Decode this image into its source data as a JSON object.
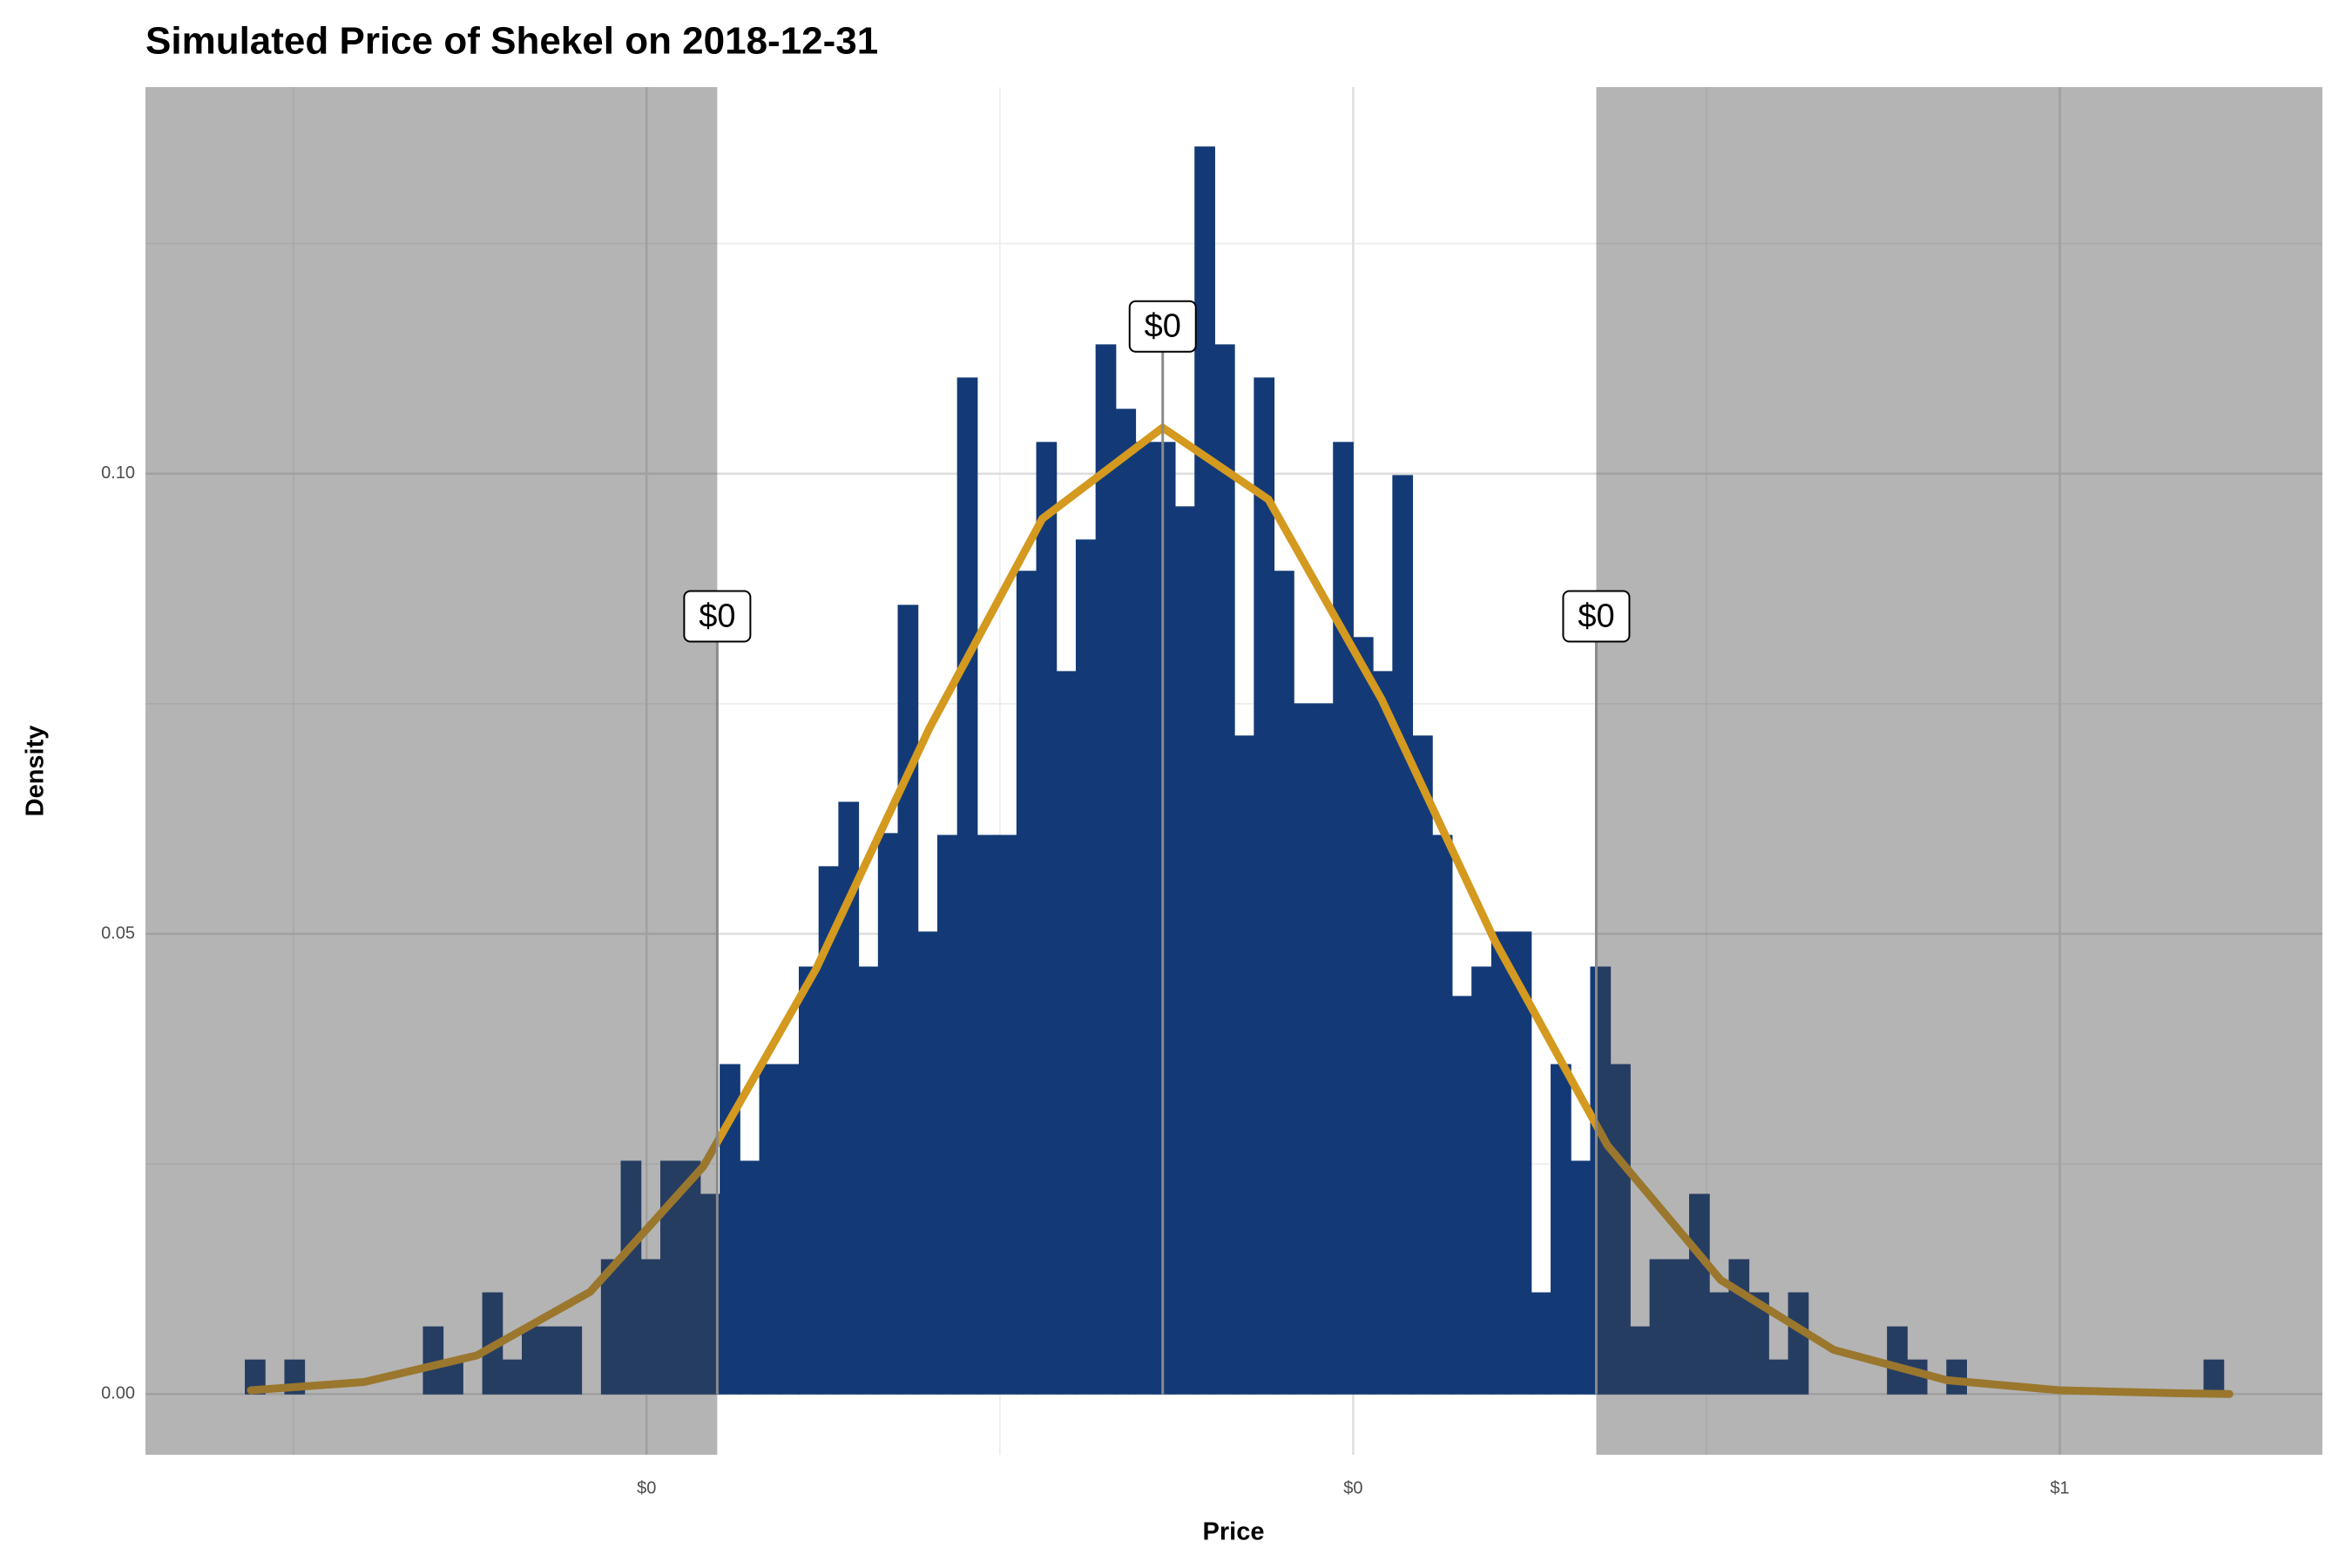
{
  "chart_data": {
    "type": "histogram",
    "title": "Simulated Price of Shekel on 2018-12-31",
    "x_label": "Price",
    "y_label": "Density",
    "bins": [
      0.108,
      0.115,
      0.122,
      0.129,
      0.136,
      0.143,
      0.15,
      0.157,
      0.164,
      0.171,
      0.178,
      0.185,
      0.192,
      0.199,
      0.206,
      0.213,
      0.22,
      0.227,
      0.234,
      0.241,
      0.248,
      0.255,
      0.262,
      0.269,
      0.276,
      0.283,
      0.29,
      0.297,
      0.304,
      0.311,
      0.318,
      0.325,
      0.332,
      0.339,
      0.346,
      0.353,
      0.36,
      0.367,
      0.374,
      0.381,
      0.388,
      0.395,
      0.402,
      0.409,
      0.416,
      0.423,
      0.43,
      0.437,
      0.444,
      0.451,
      0.458,
      0.465,
      0.472,
      0.479,
      0.486,
      0.493,
      0.5,
      0.507,
      0.514,
      0.521,
      0.528,
      0.535,
      0.542,
      0.549,
      0.556,
      0.563,
      0.57,
      0.577,
      0.584,
      0.591,
      0.598,
      0.605,
      0.612,
      0.619,
      0.626,
      0.633,
      0.64,
      0.647,
      0.654,
      0.661,
      0.668,
      0.675,
      0.682,
      0.689,
      0.696,
      0.703,
      0.71,
      0.717,
      0.724,
      0.731,
      0.738,
      0.745,
      0.752,
      0.759,
      0.766,
      0.773,
      0.78,
      0.787,
      0.794,
      0.801,
      0.808
    ],
    "values": [
      0.0037,
      0,
      0.0037,
      0,
      0,
      0,
      0,
      0,
      0,
      0.0073,
      0.0037,
      0,
      0.011,
      0.0037,
      0.0073,
      0.0073,
      0.0073,
      0,
      0.0146,
      0.0253,
      0.0146,
      0.0253,
      0.0253,
      0.0217,
      0.0358,
      0.0253,
      0.0358,
      0.0358,
      0.0464,
      0.0573,
      0.0643,
      0.0464,
      0.0609,
      0.0857,
      0.0502,
      0.0607,
      0.1104,
      0.0607,
      0.0607,
      0.0894,
      0.1034,
      0.0785,
      0.0928,
      0.114,
      0.107,
      0.1034,
      0.1034,
      0.0964,
      0.1355,
      0.114,
      0.0715,
      0.1104,
      0.0894,
      0.075,
      0.075,
      0.1034,
      0.0822,
      0.0785,
      0.0998,
      0.0715,
      0.0607,
      0.0432,
      0.0464,
      0.0502,
      0.0502,
      0.011,
      0.0358,
      0.0253,
      0.0464,
      0.0358,
      0.0073,
      0.0146,
      0.0146,
      0.0217,
      0.011,
      0.0146,
      0.011,
      0.0037,
      0.011,
      0,
      0,
      0,
      0,
      0.0073,
      0.0037,
      0,
      0.0037,
      0,
      0,
      0,
      0,
      0,
      0,
      0,
      0,
      0,
      0,
      0,
      0,
      0.0037
    ],
    "color": "#133a77",
    "density_curve": {
      "color": "#d4991f",
      "x": [
        0.11,
        0.15,
        0.19,
        0.23,
        0.27,
        0.31,
        0.35,
        0.39,
        0.4326,
        0.47,
        0.51,
        0.55,
        0.59,
        0.63,
        0.67,
        0.71,
        0.75,
        0.79,
        0.81
      ],
      "values": [
        0.0004,
        0.0013,
        0.0042,
        0.0111,
        0.0247,
        0.0462,
        0.0723,
        0.0951,
        0.105,
        0.0972,
        0.0755,
        0.0493,
        0.027,
        0.0124,
        0.0048,
        0.0015,
        0.0004,
        0.0001,
        0
      ]
    },
    "shaded_ranges": [
      [
        0.0727,
        0.275
      ],
      [
        0.586,
        0.8429
      ]
    ],
    "annotations": [
      {
        "x": 0.275,
        "y": 0.0845,
        "label": "$0"
      },
      {
        "x": 0.4326,
        "y": 0.116,
        "label": "$0"
      },
      {
        "x": 0.586,
        "y": 0.0845,
        "label": "$0"
      }
    ],
    "xlim": [
      0.0727,
      0.8429
    ],
    "ylim": [
      -0.0066,
      0.142
    ],
    "xticks": [
      {
        "value": 0.25,
        "label": "$0"
      },
      {
        "value": 0.5,
        "label": "$0"
      },
      {
        "value": 0.75,
        "label": "$1"
      }
    ],
    "x_minor_ticks": [
      0.125,
      0.375,
      0.625
    ],
    "yticks": [
      {
        "value": 0,
        "label": "0.00"
      },
      {
        "value": 0.05,
        "label": "0.05"
      },
      {
        "value": 0.1,
        "label": "0.10"
      }
    ],
    "y_minor_ticks": [
      0.025,
      0.075,
      0.125
    ],
    "grid": true
  }
}
